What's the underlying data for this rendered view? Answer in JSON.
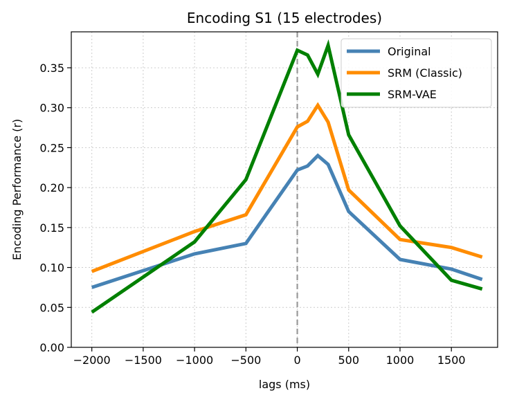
{
  "chart_data": {
    "type": "line",
    "title": "Encoding S1 (15 electrodes)",
    "xlabel": "lags (ms)",
    "ylabel": "Encoding Performance (r)",
    "xlim": [
      -2200,
      1950
    ],
    "ylim": [
      0,
      0.395
    ],
    "xticks": [
      -2000,
      -1500,
      -1000,
      -500,
      0,
      500,
      1000,
      1500
    ],
    "xtick_labels": [
      "−2000",
      "−1500",
      "−1000",
      "−500",
      "0",
      "500",
      "1000",
      "1500"
    ],
    "yticks": [
      0.0,
      0.05,
      0.1,
      0.15,
      0.2,
      0.25,
      0.3,
      0.35
    ],
    "ytick_labels": [
      "0.00",
      "0.05",
      "0.10",
      "0.15",
      "0.20",
      "0.25",
      "0.30",
      "0.35"
    ],
    "grid": true,
    "vline": {
      "x": 0,
      "style": "dashed",
      "color": "#999999"
    },
    "legend": {
      "placement": "top-right"
    },
    "series": [
      {
        "name": "Original",
        "color": "#4682b4",
        "points": [
          [
            -2000,
            0.075
          ],
          [
            -1000,
            0.117
          ],
          [
            -500,
            0.13
          ],
          [
            0,
            0.222
          ],
          [
            100,
            0.227
          ],
          [
            200,
            0.24
          ],
          [
            300,
            0.229
          ],
          [
            500,
            0.17
          ],
          [
            1000,
            0.11
          ],
          [
            1500,
            0.098
          ],
          [
            1800,
            0.085
          ]
        ]
      },
      {
        "name": "SRM (Classic)",
        "color": "#ff8c00",
        "points": [
          [
            -2000,
            0.095
          ],
          [
            -1000,
            0.145
          ],
          [
            -500,
            0.166
          ],
          [
            0,
            0.276
          ],
          [
            100,
            0.283
          ],
          [
            200,
            0.303
          ],
          [
            300,
            0.282
          ],
          [
            500,
            0.197
          ],
          [
            1000,
            0.135
          ],
          [
            1500,
            0.125
          ],
          [
            1800,
            0.113
          ]
        ]
      },
      {
        "name": "SRM-VAE",
        "color": "#008000",
        "points": [
          [
            -2000,
            0.044
          ],
          [
            -1000,
            0.132
          ],
          [
            -500,
            0.21
          ],
          [
            0,
            0.372
          ],
          [
            100,
            0.366
          ],
          [
            200,
            0.342
          ],
          [
            300,
            0.378
          ],
          [
            500,
            0.266
          ],
          [
            1000,
            0.152
          ],
          [
            1500,
            0.084
          ],
          [
            1800,
            0.073
          ]
        ]
      }
    ]
  }
}
